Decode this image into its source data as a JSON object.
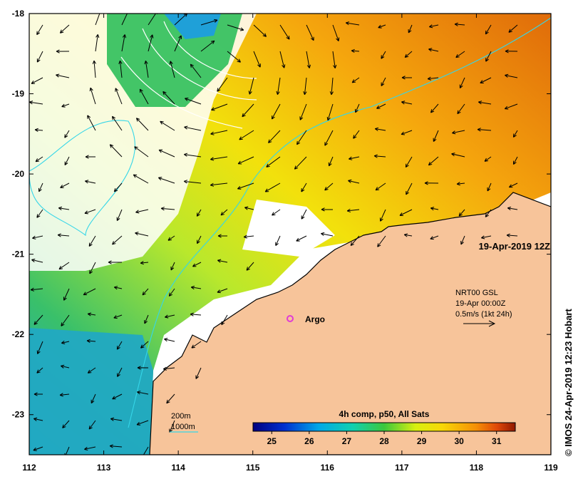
{
  "map": {
    "lon_min": 112,
    "lon_max": 119,
    "lat_min": -23.5,
    "lat_max": -18,
    "lon_ticks": [
      "112",
      "113",
      "114",
      "115",
      "116",
      "117",
      "118",
      "119"
    ],
    "lat_ticks": [
      "-18",
      "-19",
      "-20",
      "-21",
      "-22",
      "-23"
    ],
    "colors": {
      "land": "#f7c49a",
      "coast": "#000000",
      "contour": "#35d6e8",
      "float": "#e03bd6"
    }
  },
  "date_label": "19-Apr-2019 12Z",
  "current_ref": {
    "line1": "NRT00 GSL",
    "line2": "19-Apr 00:00Z",
    "line3": "0.5m/s (1kt 24h)"
  },
  "float_label": "Argo",
  "bathymetry_legend": {
    "shallow": "200m",
    "deep": "1000m"
  },
  "colorbar": {
    "title": "4h comp, p50, All Sats",
    "ticks": [
      "25",
      "26",
      "27",
      "28",
      "29",
      "30",
      "31"
    ],
    "range": [
      24.5,
      31.5
    ]
  },
  "copyright": "© IMOS 24-Apr-2019 12:23 Hobart"
}
